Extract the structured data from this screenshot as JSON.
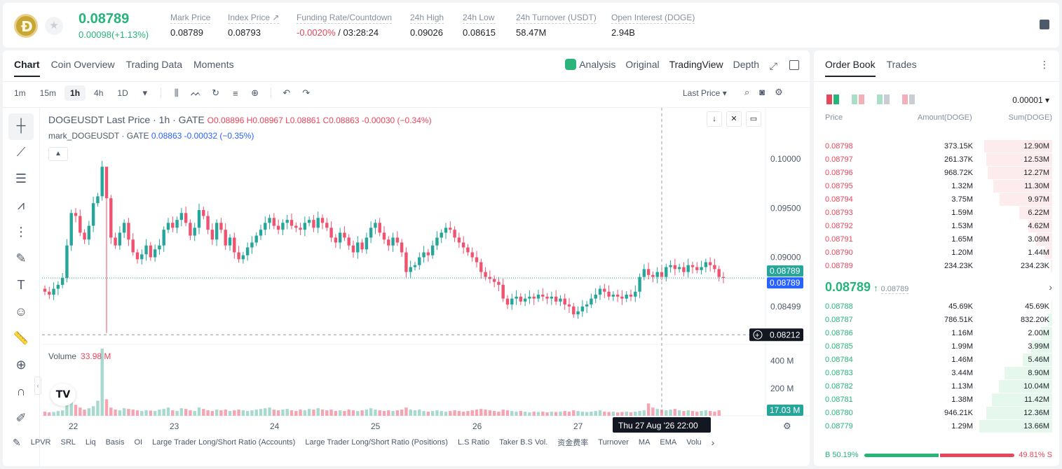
{
  "header": {
    "last_price": "0.08789",
    "change": "0.00098(+1.13%)",
    "stats": [
      {
        "label": "Mark Price",
        "value": "0.08789"
      },
      {
        "label": "Index Price ↗",
        "value": "0.08793"
      },
      {
        "label": "Funding Rate/Countdown",
        "value_neg": "-0.0020%",
        "value": " / 03:28:24"
      },
      {
        "label": "24h High",
        "value": "0.09026"
      },
      {
        "label": "24h Low",
        "value": "0.08615"
      },
      {
        "label": "24h Turnover (USDT)",
        "value": "58.47M"
      },
      {
        "label": "Open Interest (DOGE)",
        "value": "2.94B"
      }
    ]
  },
  "chart_tabs": [
    "Chart",
    "Coin Overview",
    "Trading Data",
    "Moments"
  ],
  "view_tabs": [
    "Analysis",
    "Original",
    "TradingView",
    "Depth"
  ],
  "timeframes": [
    "1m",
    "15m",
    "1h",
    "4h",
    "1D"
  ],
  "selected_timeframe": "1h",
  "price_type": "Last Price",
  "legend": {
    "title": "DOGEUSDT Last Price · 1h · GATE",
    "ohlc": "O0.08896  H0.08967  L0.08861  C0.08863  -0.00030 (−0.34%)",
    "mark": "mark_DOGEUSDT · GATE",
    "mark_values": "0.08863  -0.00032 (−0.35%)"
  },
  "volume_legend": {
    "label": "Volume",
    "value": "33.98 M"
  },
  "indicators": [
    "LPVR",
    "SRL",
    "Liq",
    "Basis",
    "OI",
    "Large Trader Long/Short Ratio (Accounts)",
    "Large Trader Long/Short Ratio (Positions)",
    "L.S Ratio",
    "Taker B.S Vol.",
    "资金费率",
    "Turnover",
    "MA",
    "EMA",
    "Volu"
  ],
  "chart_data": {
    "type": "candlestick",
    "symbol": "DOGEUSDT",
    "interval": "1h",
    "y_ticks": [
      "0.10000",
      "0.09500",
      "0.09000",
      "0.08499"
    ],
    "ylim": [
      0.0815,
      0.1032
    ],
    "x_ticks": [
      "22",
      "23",
      "24",
      "25",
      "26",
      "27"
    ],
    "current_price_label": "0.08789",
    "mark_price_label": "0.08789",
    "crosshair_price_label": "0.08212",
    "crosshair_time_label": "Thu 27 Aug '26   22:00",
    "volume_ticks": [
      "400 M",
      "200 M"
    ],
    "volume_current_label": "17.03 M",
    "ylim_volume": [
      0,
      520
    ],
    "closes": [
      0.0865,
      0.0862,
      0.0868,
      0.0872,
      0.0879,
      0.0912,
      0.0945,
      0.0942,
      0.0925,
      0.0918,
      0.0932,
      0.0955,
      0.0962,
      0.0992,
      0.096,
      0.092,
      0.0912,
      0.0925,
      0.0935,
      0.0918,
      0.0905,
      0.0898,
      0.0903,
      0.0912,
      0.09,
      0.0908,
      0.0912,
      0.0928,
      0.0935,
      0.093,
      0.0938,
      0.0945,
      0.0935,
      0.0922,
      0.093,
      0.0948,
      0.0942,
      0.0928,
      0.0918,
      0.0935,
      0.0928,
      0.0912,
      0.092,
      0.0905,
      0.0898,
      0.0902,
      0.091,
      0.0915,
      0.0922,
      0.0928,
      0.0935,
      0.094,
      0.0932,
      0.0928,
      0.0935,
      0.0938,
      0.0932,
      0.093,
      0.0928,
      0.0935,
      0.0938,
      0.093,
      0.094,
      0.0935,
      0.093,
      0.092,
      0.0915,
      0.0925,
      0.092,
      0.0912,
      0.0905,
      0.0915,
      0.0908,
      0.092,
      0.093,
      0.0935,
      0.0925,
      0.0918,
      0.0912,
      0.092,
      0.0915,
      0.0905,
      0.0885,
      0.089,
      0.0892,
      0.09,
      0.0905,
      0.0902,
      0.0912,
      0.092,
      0.0925,
      0.093,
      0.0928,
      0.092,
      0.0915,
      0.091,
      0.0905,
      0.09,
      0.0895,
      0.0885,
      0.088,
      0.0878,
      0.0875,
      0.0872,
      0.0858,
      0.0852,
      0.0858,
      0.086,
      0.0855,
      0.0858,
      0.086,
      0.0858,
      0.0862,
      0.086,
      0.0858,
      0.086,
      0.0855,
      0.0858,
      0.0852,
      0.085,
      0.0842,
      0.0845,
      0.085,
      0.0852,
      0.0858,
      0.0862,
      0.0868,
      0.0865,
      0.086,
      0.0862,
      0.086,
      0.0858,
      0.0862,
      0.086,
      0.0865,
      0.088,
      0.0888,
      0.0882,
      0.088,
      0.0885,
      0.088,
      0.089,
      0.0892,
      0.0888,
      0.089,
      0.0885,
      0.0892,
      0.089,
      0.0887,
      0.089,
      0.0895,
      0.0892,
      0.0888,
      0.088,
      0.0879
    ],
    "volumes": [
      30,
      25,
      28,
      35,
      40,
      90,
      130,
      80,
      60,
      45,
      55,
      70,
      110,
      490,
      120,
      60,
      45,
      40,
      55,
      50,
      45,
      40,
      35,
      40,
      38,
      35,
      45,
      50,
      60,
      40,
      35,
      55,
      50,
      40,
      35,
      60,
      50,
      40,
      35,
      45,
      40,
      45,
      35,
      40,
      45,
      40,
      35,
      40,
      45,
      50,
      55,
      60,
      45,
      40,
      45,
      50,
      40,
      35,
      45,
      40,
      50,
      45,
      55,
      45,
      40,
      45,
      35,
      40,
      35,
      45,
      40,
      35,
      40,
      45,
      55,
      45,
      40,
      35,
      40,
      35,
      40,
      45,
      60,
      45,
      40,
      45,
      35,
      30,
      35,
      40,
      35,
      30,
      35,
      40,
      35,
      30,
      35,
      40,
      45,
      50,
      45,
      40,
      35,
      30,
      45,
      40,
      35,
      30,
      35,
      30,
      25,
      30,
      28,
      30,
      25,
      30,
      28,
      30,
      35,
      30,
      40,
      35,
      30,
      28,
      30,
      35,
      40,
      30,
      28,
      30,
      25,
      28,
      30,
      25,
      30,
      35,
      40,
      90,
      60,
      50,
      45,
      40,
      45,
      50,
      40,
      35,
      40,
      35,
      30,
      35,
      40,
      35,
      30,
      40
    ]
  },
  "orderbook": {
    "tabs": [
      "Order Book",
      "Trades"
    ],
    "precision": "0.00001",
    "headers": [
      "Price",
      "Amount(DOGE)",
      "Sum(DOGE)"
    ],
    "asks": [
      {
        "price": "0.08798",
        "amount": "373.15K",
        "sum": "12.90M",
        "depth": 0.93
      },
      {
        "price": "0.08797",
        "amount": "261.37K",
        "sum": "12.53M",
        "depth": 0.9
      },
      {
        "price": "0.08796",
        "amount": "968.72K",
        "sum": "12.27M",
        "depth": 0.88
      },
      {
        "price": "0.08795",
        "amount": "1.32M",
        "sum": "11.30M",
        "depth": 0.81
      },
      {
        "price": "0.08794",
        "amount": "3.75M",
        "sum": "9.97M",
        "depth": 0.72
      },
      {
        "price": "0.08793",
        "amount": "1.59M",
        "sum": "6.22M",
        "depth": 0.45
      },
      {
        "price": "0.08792",
        "amount": "1.53M",
        "sum": "4.62M",
        "depth": 0.33
      },
      {
        "price": "0.08791",
        "amount": "1.65M",
        "sum": "3.09M",
        "depth": 0.22
      },
      {
        "price": "0.08790",
        "amount": "1.20M",
        "sum": "1.44M",
        "depth": 0.1
      },
      {
        "price": "0.08789",
        "amount": "234.23K",
        "sum": "234.23K",
        "depth": 0.02
      }
    ],
    "mid_price": "0.08789",
    "mid_arrow": "↑",
    "mid_mark": "0.08789",
    "bids": [
      {
        "price": "0.08788",
        "amount": "45.69K",
        "sum": "45.69K",
        "depth": 0.01
      },
      {
        "price": "0.08787",
        "amount": "786.51K",
        "sum": "832.20K",
        "depth": 0.06
      },
      {
        "price": "0.08786",
        "amount": "1.16M",
        "sum": "2.00M",
        "depth": 0.15
      },
      {
        "price": "0.08785",
        "amount": "1.99M",
        "sum": "3.99M",
        "depth": 0.29
      },
      {
        "price": "0.08784",
        "amount": "1.46M",
        "sum": "5.46M",
        "depth": 0.4
      },
      {
        "price": "0.08783",
        "amount": "3.44M",
        "sum": "8.90M",
        "depth": 0.65
      },
      {
        "price": "0.08782",
        "amount": "1.13M",
        "sum": "10.04M",
        "depth": 0.73
      },
      {
        "price": "0.08781",
        "amount": "1.38M",
        "sum": "11.42M",
        "depth": 0.83
      },
      {
        "price": "0.08780",
        "amount": "946.21K",
        "sum": "12.36M",
        "depth": 0.9
      },
      {
        "price": "0.08779",
        "amount": "1.29M",
        "sum": "13.66M",
        "depth": 1.0
      }
    ],
    "buy_ratio": "B 50.19%",
    "sell_ratio": "49.81% S"
  }
}
